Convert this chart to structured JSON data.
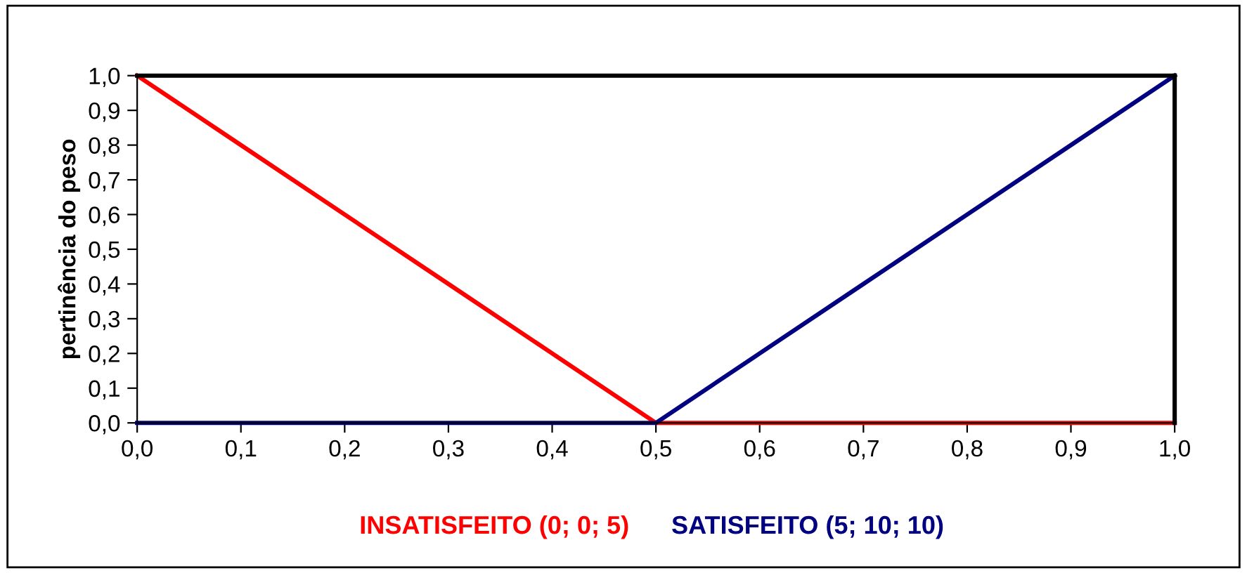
{
  "chart_data": {
    "type": "line",
    "ylabel": "pertinência do peso",
    "x": [
      0,
      0.1,
      0.2,
      0.3,
      0.4,
      0.5,
      0.6,
      0.7,
      0.8,
      0.9,
      1.0
    ],
    "series": [
      {
        "name": "INSATISFEITO (0; 0; 5)",
        "color": "#ff0000",
        "values": [
          1,
          0.8,
          0.6,
          0.4,
          0.2,
          0,
          0,
          0,
          0,
          0,
          0
        ]
      },
      {
        "name": "SATISFEITO (5; 10; 10)",
        "color": "#000080",
        "values": [
          0,
          0,
          0,
          0,
          0,
          0,
          0.2,
          0.4,
          0.6,
          0.8,
          1
        ]
      }
    ],
    "xlim": [
      0,
      1
    ],
    "ylim": [
      0,
      1
    ],
    "xticks": [
      {
        "value": 0,
        "label": "0,0"
      },
      {
        "value": 0.1,
        "label": "0,1"
      },
      {
        "value": 0.2,
        "label": "0,2"
      },
      {
        "value": 0.3,
        "label": "0,3"
      },
      {
        "value": 0.4,
        "label": "0,4"
      },
      {
        "value": 0.5,
        "label": "0,5"
      },
      {
        "value": 0.6,
        "label": "0,6"
      },
      {
        "value": 0.7,
        "label": "0,7"
      },
      {
        "value": 0.8,
        "label": "0,8"
      },
      {
        "value": 0.9,
        "label": "0,9"
      },
      {
        "value": 1,
        "label": "1,0"
      }
    ],
    "yticks": [
      {
        "value": 0,
        "label": "0,0"
      },
      {
        "value": 0.1,
        "label": "0,1"
      },
      {
        "value": 0.2,
        "label": "0,2"
      },
      {
        "value": 0.3,
        "label": "0,3"
      },
      {
        "value": 0.4,
        "label": "0,4"
      },
      {
        "value": 0.5,
        "label": "0,5"
      },
      {
        "value": 0.6,
        "label": "0,6"
      },
      {
        "value": 0.7,
        "label": "0,7"
      },
      {
        "value": 0.8,
        "label": "0,8"
      },
      {
        "value": 0.9,
        "label": "0,9"
      },
      {
        "value": 1,
        "label": "1,0"
      }
    ],
    "grid": false,
    "legend": "bottom",
    "marker": "none",
    "line_style": "solid"
  }
}
